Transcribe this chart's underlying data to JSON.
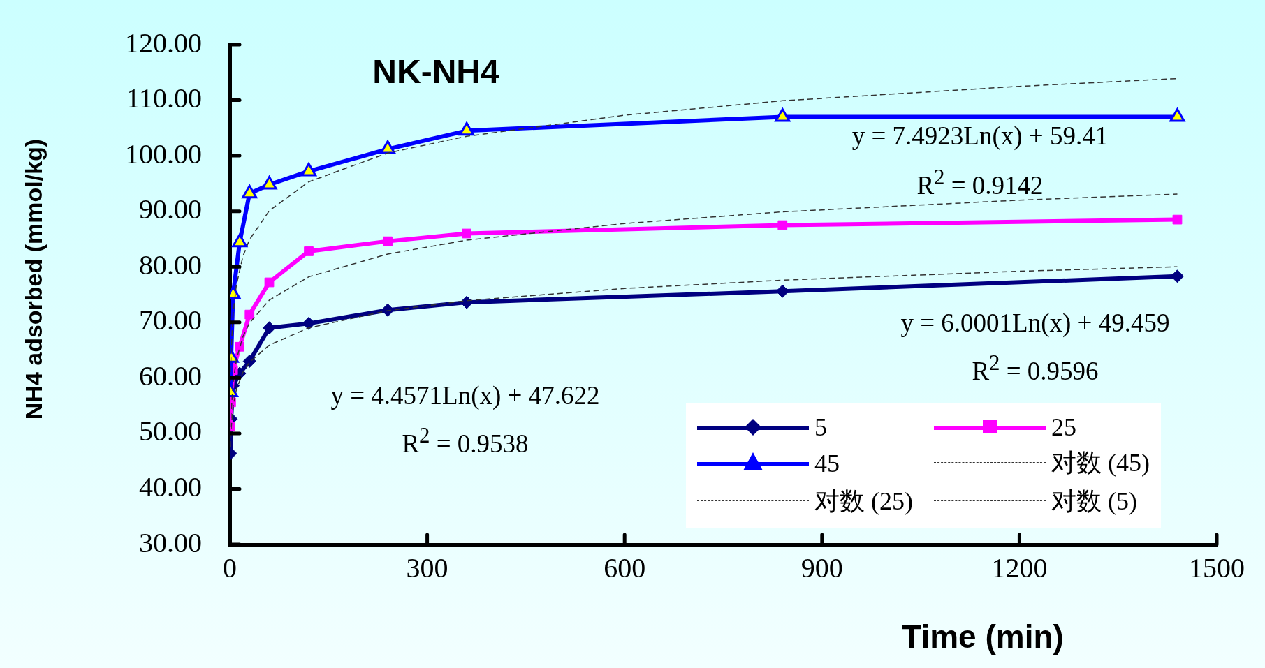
{
  "chart_data": {
    "type": "line",
    "title": "NK-NH4",
    "xlabel": "Time (min)",
    "ylabel": "NH4 adsorbed (mmol/kg)",
    "xlim": [
      0,
      1500
    ],
    "xticks": [
      0,
      300,
      600,
      900,
      1200,
      1500
    ],
    "ylim": [
      30,
      120
    ],
    "yticks": [
      {
        "value": 30,
        "label": "30.00"
      },
      {
        "value": 40,
        "label": "40.00"
      },
      {
        "value": 50,
        "label": "50.00"
      },
      {
        "value": 60,
        "label": "60.00"
      },
      {
        "value": 70,
        "label": "70.00"
      },
      {
        "value": 80,
        "label": "80.00"
      },
      {
        "value": 90,
        "label": "90.00"
      },
      {
        "value": 100,
        "label": "100.00"
      },
      {
        "value": 110,
        "label": "110.00"
      },
      {
        "value": 120,
        "label": "120.00"
      }
    ],
    "grid": false,
    "legend": "bottom right",
    "line_style": "solid",
    "series": [
      {
        "name": "5",
        "color": "#000080",
        "marker": "diamond",
        "x": [
          1,
          2,
          5,
          15,
          30,
          60,
          120,
          240,
          360,
          840,
          1440
        ],
        "values": [
          46.4,
          52.6,
          58.6,
          60.8,
          63.0,
          69.0,
          69.8,
          72.2,
          73.6,
          75.6,
          78.3
        ]
      },
      {
        "name": "25",
        "color": "#ff00ff",
        "marker": "square",
        "x": [
          1,
          2,
          5,
          15,
          30,
          60,
          120,
          240,
          360,
          840,
          1440
        ],
        "values": [
          51.2,
          55.6,
          61.4,
          65.6,
          71.4,
          77.2,
          82.8,
          84.6,
          86.0,
          87.5,
          88.5
        ]
      },
      {
        "name": "45",
        "color": "#0000ff",
        "marker": "triangle",
        "x": [
          1,
          2,
          5,
          15,
          30,
          60,
          120,
          240,
          360,
          840,
          1440
        ],
        "values": [
          57.4,
          63.6,
          75.0,
          84.4,
          93.2,
          94.8,
          97.2,
          101.2,
          104.5,
          107.0,
          107.0
        ]
      },
      {
        "name": "对数 (45)",
        "type": "line",
        "color": "#333333",
        "marker": "none",
        "line_style": "dashed",
        "x": [
          1,
          2,
          5,
          10,
          20,
          30,
          60,
          120,
          240,
          360,
          600,
          840,
          1200,
          1440
        ],
        "values": [
          59.4,
          64.6,
          71.5,
          76.7,
          81.9,
          84.9,
          90.1,
          95.3,
          100.5,
          103.5,
          107.3,
          109.9,
          112.5,
          113.9
        ]
      },
      {
        "name": "对数 (25)",
        "type": "line",
        "color": "#333333",
        "marker": "none",
        "line_style": "dashed",
        "x": [
          1,
          2,
          5,
          10,
          20,
          30,
          60,
          120,
          240,
          360,
          600,
          840,
          1200,
          1440
        ],
        "values": [
          49.5,
          53.6,
          59.1,
          63.3,
          67.4,
          69.9,
          74.0,
          78.2,
          82.3,
          84.8,
          87.8,
          89.9,
          92.0,
          93.1
        ]
      },
      {
        "name": "对数 (5)",
        "type": "line",
        "color": "#333333",
        "marker": "none",
        "line_style": "dashed",
        "x": [
          1,
          2,
          5,
          10,
          20,
          30,
          60,
          120,
          240,
          360,
          600,
          840,
          1200,
          1440
        ],
        "values": [
          47.6,
          50.7,
          54.8,
          57.9,
          61.0,
          62.8,
          65.9,
          69.0,
          72.1,
          73.9,
          76.1,
          77.6,
          79.2,
          80.0
        ]
      }
    ],
    "annotations": [
      "y = 7.4923Ln(x) + 59.41",
      "R$^{2}$ = 0.9142",
      "y = 6.0001Ln(x) + 49.459",
      "R$^{2}$ = 0.9596",
      "y = 4.4571Ln(x) + 47.622",
      "R$^{2}$ = 0.9538"
    ]
  }
}
